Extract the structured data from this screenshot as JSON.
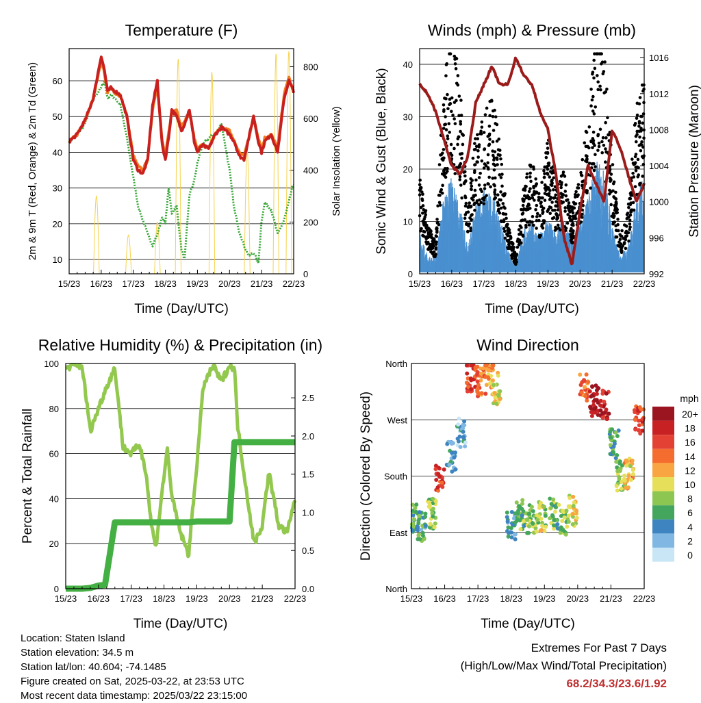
{
  "colors": {
    "temp_red": "#c8201e",
    "temp_orange": "#f07a20",
    "dewpoint_green": "#3aa83a",
    "insolation_yellow": "#f5d24a",
    "gust_black": "#000000",
    "wind_blue": "#4a90d0",
    "pressure_maroon": "#9b1b1b",
    "rh_lightgreen": "#92c84e",
    "precip_green": "#44b044",
    "extremes_red": "#c03030"
  },
  "chart_data": [
    {
      "type": "line",
      "title": "Temperature (F)",
      "xlabel": "Time (Day/UTC)",
      "ylabel": "2m & 9m T (Red, Orange) & 2m Td (Green)",
      "y2label": "Solar Insolation (Yellow)",
      "x_ticks": [
        "15/23",
        "16/23",
        "17/23",
        "18/23",
        "19/23",
        "20/23",
        "21/23",
        "22/23"
      ],
      "ylim": [
        6,
        69
      ],
      "y_ticks": [
        10,
        20,
        30,
        40,
        50,
        60
      ],
      "y2lim": [
        0,
        870
      ],
      "y2_ticks": [
        0,
        200,
        400,
        600,
        800
      ],
      "grid": true,
      "x": [
        0,
        0.25,
        0.5,
        0.75,
        1,
        1.1,
        1.2,
        1.3,
        1.45,
        1.6,
        1.8,
        2,
        2.15,
        2.3,
        2.45,
        2.6,
        2.75,
        2.9,
        3,
        3.1,
        3.2,
        3.35,
        3.5,
        3.6,
        3.75,
        3.9,
        4,
        4.15,
        4.35,
        4.55,
        4.75,
        5,
        5.15,
        5.3,
        5.45,
        5.6,
        5.75,
        5.9,
        6,
        6.1,
        6.3,
        6.5,
        6.7,
        6.85,
        6.95,
        7
      ],
      "series": [
        {
          "name": "2m T",
          "values": [
            43,
            45,
            49,
            55,
            67,
            63,
            57,
            58,
            57,
            56,
            50,
            38,
            35,
            34,
            38,
            53,
            60,
            42,
            38,
            44,
            52,
            50,
            46,
            48,
            52,
            43,
            40,
            42,
            41,
            45,
            47,
            45,
            43,
            39,
            38,
            44,
            50,
            43,
            40,
            43,
            45,
            40,
            55,
            60,
            58,
            57
          ]
        },
        {
          "name": "9m T",
          "values": [
            43,
            45,
            49,
            55,
            66,
            62,
            57,
            58,
            56,
            56,
            50,
            39,
            36,
            35,
            38,
            52,
            59,
            43,
            39,
            45,
            51,
            52,
            47,
            49,
            51,
            44,
            41,
            42,
            41,
            45,
            47,
            46,
            43,
            40,
            39,
            44,
            50,
            44,
            41,
            44,
            45,
            41,
            56,
            61,
            58,
            57
          ]
        },
        {
          "name": "2m Td",
          "values": [
            43,
            45,
            48,
            55,
            58,
            60,
            55,
            56,
            55,
            53,
            44,
            33,
            25,
            21,
            17,
            14,
            17,
            22,
            20,
            30,
            23,
            25,
            13,
            10,
            28,
            32,
            37,
            42,
            44,
            45,
            48,
            35,
            24,
            18,
            14,
            11,
            12,
            9,
            21,
            26,
            24,
            17,
            21,
            26,
            30,
            31
          ]
        },
        {
          "name": "Solar Insolation",
          "axis": "y2",
          "values": [
            0,
            0,
            0,
            0,
            0,
            0,
            0,
            0,
            0,
            0,
            0,
            0,
            0,
            0,
            0,
            0,
            0,
            0,
            0,
            0,
            0,
            0,
            0,
            0,
            0,
            0,
            0,
            0,
            0,
            0,
            0,
            0,
            0,
            0,
            0,
            0,
            0,
            0,
            0,
            0,
            0,
            0,
            0,
            0,
            0,
            0
          ]
        }
      ],
      "insolation_peaks": [
        {
          "day": 0.85,
          "peak": 300
        },
        {
          "day": 1.85,
          "peak": 150
        },
        {
          "day": 2.75,
          "peak": 200
        },
        {
          "day": 3.4,
          "peak": 830
        },
        {
          "day": 4.45,
          "peak": 780
        },
        {
          "day": 5.55,
          "peak": 480
        },
        {
          "day": 6.45,
          "peak": 850
        },
        {
          "day": 6.85,
          "peak": 860
        }
      ]
    },
    {
      "type": "scatter",
      "title": "Winds (mph) & Pressure (mb)",
      "xlabel": "Time (Day/UTC)",
      "ylabel": "Sonic Wind & Gust (Blue, Black)",
      "y2label": "Station Pressure (Maroon)",
      "x_ticks": [
        "15/23",
        "16/23",
        "17/23",
        "18/23",
        "19/23",
        "20/23",
        "21/23",
        "22/23"
      ],
      "ylim": [
        0,
        43
      ],
      "y_ticks": [
        0,
        10,
        20,
        30,
        40
      ],
      "y2lim": [
        992,
        1017
      ],
      "y2_ticks": [
        992,
        996,
        1000,
        1004,
        1008,
        1012,
        1016
      ],
      "grid": true,
      "x": [
        0,
        0.25,
        0.5,
        0.75,
        1,
        1.25,
        1.5,
        1.75,
        2,
        2.25,
        2.5,
        2.75,
        3,
        3.25,
        3.5,
        3.75,
        4,
        4.25,
        4.5,
        4.75,
        5,
        5.25,
        5.5,
        5.75,
        6,
        6.25,
        6.5,
        6.75,
        7
      ],
      "series": [
        {
          "name": "Gust",
          "values": [
            15,
            8,
            5,
            30,
            38,
            30,
            10,
            22,
            24,
            28,
            20,
            8,
            3,
            14,
            18,
            12,
            22,
            14,
            16,
            10,
            16,
            24,
            38,
            34,
            18,
            6,
            10,
            26,
            30
          ]
        },
        {
          "name": "Wind",
          "values": [
            8,
            3,
            3,
            14,
            17,
            12,
            5,
            12,
            15,
            14,
            10,
            4,
            2,
            8,
            9,
            7,
            10,
            7,
            10,
            6,
            9,
            14,
            20,
            18,
            9,
            3,
            5,
            14,
            17
          ]
        },
        {
          "name": "Pressure",
          "axis": "y2",
          "values": [
            1013,
            1012,
            1010,
            1007,
            1004,
            1003,
            1005,
            1011,
            1013,
            1015,
            1013,
            1013,
            1016,
            1014,
            1013,
            1010,
            1008,
            1003,
            996,
            993,
            999,
            1004,
            1002,
            1000,
            1008,
            1006,
            1003,
            1000,
            1002
          ]
        }
      ]
    },
    {
      "type": "line",
      "title": "Relative Humidity (%) & Precipitation (in)",
      "xlabel": "Time (Day/UTC)",
      "ylabel": "Percent & Total Rainfall",
      "x_ticks": [
        "15/23",
        "16/23",
        "17/23",
        "18/23",
        "19/23",
        "20/23",
        "21/23",
        "22/23"
      ],
      "ylim": [
        0,
        100
      ],
      "y_ticks": [
        0,
        20,
        40,
        60,
        80,
        100
      ],
      "y2lim": [
        0,
        2.95
      ],
      "y2_ticks": [
        "0.0",
        "0.5",
        "1.0",
        "1.5",
        "2.0",
        "2.5"
      ],
      "grid": true,
      "x": [
        0,
        0.2,
        0.5,
        0.75,
        1,
        1.2,
        1.5,
        1.75,
        2,
        2.25,
        2.45,
        2.6,
        2.75,
        2.9,
        3.1,
        3.25,
        3.5,
        3.75,
        4,
        4.2,
        4.5,
        4.75,
        5,
        5.15,
        5.25,
        5.5,
        5.75,
        6,
        6.2,
        6.5,
        6.75,
        6.85,
        7
      ],
      "series": [
        {
          "name": "RH",
          "values": [
            98,
            99,
            99,
            70,
            80,
            88,
            98,
            63,
            60,
            64,
            52,
            30,
            18,
            38,
            62,
            40,
            25,
            15,
            55,
            90,
            99,
            92,
            99,
            98,
            72,
            45,
            20,
            28,
            52,
            28,
            25,
            30,
            40
          ]
        },
        {
          "name": "Precip",
          "axis": "y2",
          "values": [
            0,
            0,
            0,
            0.01,
            0.04,
            0.05,
            0.87,
            0.87,
            0.87,
            0.87,
            0.87,
            0.87,
            0.87,
            0.87,
            0.87,
            0.87,
            0.87,
            0.87,
            0.88,
            0.88,
            0.88,
            0.88,
            0.88,
            1.92,
            1.92,
            1.92,
            1.92,
            1.92,
            1.92,
            1.92,
            1.92,
            1.92,
            1.92
          ]
        }
      ]
    },
    {
      "type": "scatter",
      "title": "Wind Direction",
      "xlabel": "Time (Day/UTC)",
      "ylabel": "Direction (Colored By Speed)",
      "x_ticks": [
        "15/23",
        "16/23",
        "17/23",
        "18/23",
        "19/23",
        "20/23",
        "21/23",
        "22/23"
      ],
      "y_ticks": [
        "North",
        "East",
        "South",
        "West",
        "North"
      ],
      "ylim": [
        0,
        360
      ],
      "grid": true,
      "legend": {
        "title": "mph",
        "labels": [
          "20+",
          "18",
          "16",
          "14",
          "12",
          "10",
          "8",
          "6",
          "4",
          "2",
          "0"
        ],
        "colors": [
          "#9b1520",
          "#c82124",
          "#e44135",
          "#f46d2e",
          "#f9a541",
          "#e6df5a",
          "#8dc651",
          "#44a65c",
          "#3d84c0",
          "#81b8e3",
          "#c8e6f6"
        ]
      },
      "clusters": [
        {
          "x": 0.1,
          "dir": 110,
          "spd": 6
        },
        {
          "x": 0.3,
          "dir": 100,
          "spd": 5
        },
        {
          "x": 0.6,
          "dir": 120,
          "spd": 8
        },
        {
          "x": 0.85,
          "dir": 175,
          "spd": 16
        },
        {
          "x": 1.2,
          "dir": 210,
          "spd": 4
        },
        {
          "x": 1.5,
          "dir": 250,
          "spd": 3
        },
        {
          "x": 1.8,
          "dir": 340,
          "spd": 16
        },
        {
          "x": 2.1,
          "dir": 330,
          "spd": 14
        },
        {
          "x": 2.35,
          "dir": 345,
          "spd": 12
        },
        {
          "x": 2.55,
          "dir": 320,
          "spd": 10
        },
        {
          "x": 3.0,
          "dir": 100,
          "spd": 4
        },
        {
          "x": 3.3,
          "dir": 120,
          "spd": 7
        },
        {
          "x": 3.6,
          "dir": 110,
          "spd": 8
        },
        {
          "x": 3.9,
          "dir": 115,
          "spd": 9
        },
        {
          "x": 4.3,
          "dir": 120,
          "spd": 7
        },
        {
          "x": 4.6,
          "dir": 110,
          "spd": 8
        },
        {
          "x": 4.85,
          "dir": 125,
          "spd": 10
        },
        {
          "x": 5.2,
          "dir": 320,
          "spd": 14
        },
        {
          "x": 5.5,
          "dir": 300,
          "spd": 20
        },
        {
          "x": 5.8,
          "dir": 295,
          "spd": 18
        },
        {
          "x": 6.1,
          "dir": 230,
          "spd": 6
        },
        {
          "x": 6.3,
          "dir": 180,
          "spd": 8
        },
        {
          "x": 6.55,
          "dir": 185,
          "spd": 11
        },
        {
          "x": 6.85,
          "dir": 270,
          "spd": 16
        }
      ]
    }
  ],
  "footer": {
    "location": "Location: Staten Island",
    "elevation": "Station elevation: 34.5 m",
    "latlon": "Station lat/lon: 40.604; -74.1485",
    "created": "Figure created on Sat, 2025-03-22, at 23:53 UTC",
    "recent": "Most recent data timestamp: 2025/03/22 23:15:00",
    "extremes_title": "Extremes For Past 7 Days",
    "extremes_sub": "(High/Low/Max Wind/Total Precipitation)",
    "extremes_values": "68.2/34.3/23.6/1.92"
  }
}
